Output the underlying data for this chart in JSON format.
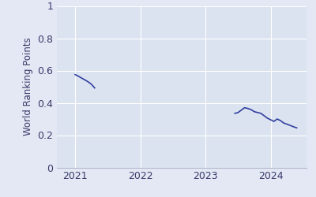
{
  "segment1_x": [
    2021.0,
    2021.05,
    2021.1,
    2021.15,
    2021.2,
    2021.25,
    2021.3
  ],
  "segment1_y": [
    0.575,
    0.565,
    0.553,
    0.542,
    0.53,
    0.515,
    0.492
  ],
  "segment2_x": [
    2023.45,
    2023.5,
    2023.55,
    2023.6,
    2023.65,
    2023.7,
    2023.75,
    2023.8,
    2023.85,
    2023.9,
    2023.95,
    2024.0,
    2024.05,
    2024.1,
    2024.15,
    2024.2,
    2024.25,
    2024.3,
    2024.35,
    2024.4
  ],
  "segment2_y": [
    0.335,
    0.34,
    0.355,
    0.37,
    0.365,
    0.358,
    0.345,
    0.34,
    0.335,
    0.32,
    0.305,
    0.295,
    0.285,
    0.3,
    0.29,
    0.275,
    0.268,
    0.26,
    0.252,
    0.245
  ],
  "ylabel": "World Ranking Points",
  "xlim": [
    2020.72,
    2024.55
  ],
  "ylim": [
    0,
    1
  ],
  "yticks": [
    0,
    0.2,
    0.4,
    0.6,
    0.8,
    1
  ],
  "ytick_labels": [
    "0",
    "0.2",
    "0.4",
    "0.6",
    "0.8",
    "1"
  ],
  "xticks": [
    2021,
    2022,
    2023,
    2024
  ],
  "line_color": "#3040a0",
  "bg_color": "#e4e8f4",
  "axes_bg_color": "#dce3f0",
  "grid_color": "#ffffff",
  "tick_color": "#3a3a6a",
  "ylabel_fontsize": 8.5,
  "tick_fontsize": 9
}
